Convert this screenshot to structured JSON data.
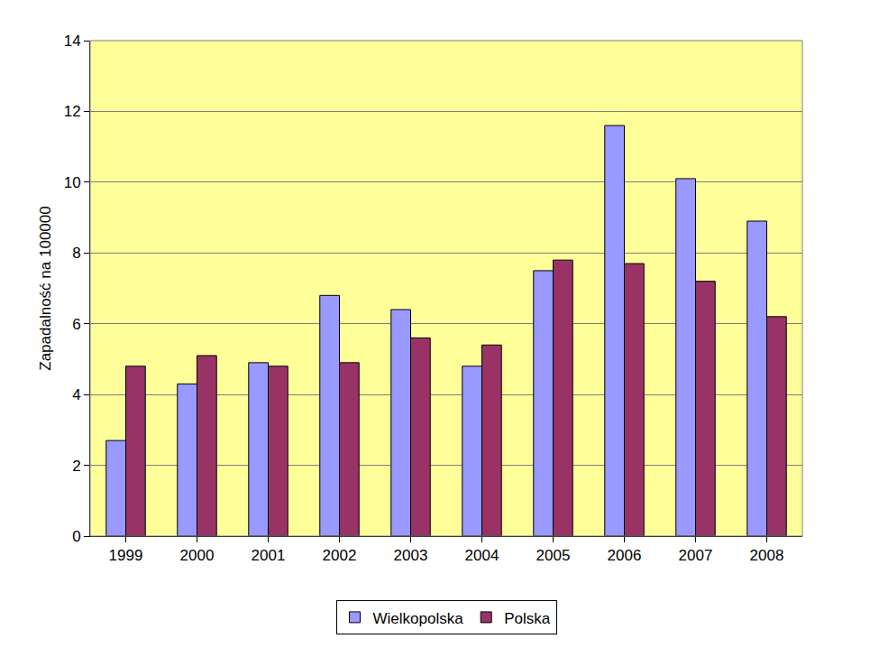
{
  "chart_data": {
    "type": "bar",
    "y_label": "Zapadalność na 100000",
    "categories": [
      "1999",
      "2000",
      "2001",
      "2002",
      "2003",
      "2004",
      "2005",
      "2006",
      "2007",
      "2008"
    ],
    "series": [
      {
        "name": "Wielkopolska",
        "color": "#9999ff",
        "values": [
          2.7,
          4.3,
          4.9,
          6.8,
          6.4,
          4.8,
          7.5,
          11.6,
          10.1,
          8.9
        ]
      },
      {
        "name": "Polska",
        "color": "#993366",
        "values": [
          4.8,
          5.1,
          4.8,
          4.9,
          5.6,
          5.4,
          7.8,
          7.7,
          7.2,
          6.2
        ]
      }
    ],
    "ylim": [
      0,
      14
    ],
    "yticks": [
      0,
      2,
      4,
      6,
      8,
      10,
      12,
      14
    ],
    "grid": true,
    "legend": "bottom"
  }
}
